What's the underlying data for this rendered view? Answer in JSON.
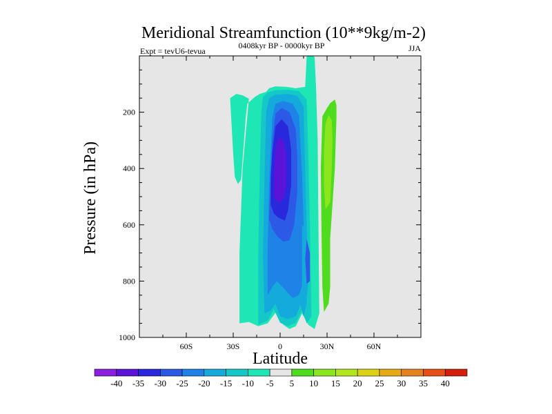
{
  "chart_data": {
    "type": "contour",
    "title": "Meridional Streamfunction (10**9kg/m-2)",
    "subtitle": "0408kyr BP - 0000kyr BP",
    "left_label": "Expt = tevU6-tevua",
    "right_label": "JJA",
    "xlabel": "Latitude",
    "ylabel": "Pressure (in hPa)",
    "x_range": [
      -90,
      90
    ],
    "y_range": [
      0,
      1000
    ],
    "y_inverted": true,
    "x_ticks": [
      {
        "value": -60,
        "label": "60S"
      },
      {
        "value": -30,
        "label": "30S"
      },
      {
        "value": 0,
        "label": "0"
      },
      {
        "value": 30,
        "label": "30N"
      },
      {
        "value": 60,
        "label": "60N"
      }
    ],
    "y_ticks": [
      {
        "value": 200,
        "label": "200"
      },
      {
        "value": 400,
        "label": "400"
      },
      {
        "value": 600,
        "label": "600"
      },
      {
        "value": 800,
        "label": "800"
      },
      {
        "value": 1000,
        "label": "1000"
      }
    ],
    "contour_levels": [
      -40,
      -35,
      -30,
      -25,
      -20,
      -15,
      -10,
      -5,
      5,
      10,
      15,
      20,
      25,
      30,
      35,
      40
    ],
    "colorbar_labels": [
      "-40",
      "-35",
      "-30",
      "-25",
      "-20",
      "-15",
      "-10",
      "-5",
      "5",
      "10",
      "15",
      "20",
      "25",
      "30",
      "35",
      "40"
    ],
    "colors": [
      "#8c1ee0",
      "#5a14d8",
      "#2a28dc",
      "#2c5ae6",
      "#1e82e6",
      "#14aadc",
      "#14c8c8",
      "#1ee6b4",
      "#e6e6e6",
      "#50dc1e",
      "#8ce61e",
      "#b4e61e",
      "#dcd214",
      "#e6aa14",
      "#e6821e",
      "#e65014",
      "#d21e0a"
    ],
    "regions": [
      {
        "name": "sh-tongue",
        "value": -7.5,
        "points": [
          [
            -26,
            950
          ],
          [
            -20,
            945
          ],
          [
            -14,
            960
          ],
          [
            -8,
            950
          ],
          [
            -2,
            905
          ],
          [
            2,
            955
          ],
          [
            6,
            970
          ],
          [
            10,
            960
          ],
          [
            14,
            915
          ],
          [
            18,
            955
          ],
          [
            22,
            970
          ],
          [
            25,
            915
          ],
          [
            24,
            400
          ],
          [
            23,
            120
          ],
          [
            22,
            5
          ],
          [
            21,
            -5
          ],
          [
            17,
            -5
          ],
          [
            16,
            110
          ],
          [
            10,
            115
          ],
          [
            4,
            110
          ],
          [
            -3,
            108
          ],
          [
            -7,
            115
          ],
          [
            -9,
            128
          ],
          [
            -13,
            135
          ],
          [
            -16,
            145
          ],
          [
            -19,
            160
          ],
          [
            -21,
            170
          ],
          [
            -22,
            220
          ],
          [
            -25,
            440
          ],
          [
            -27,
            455
          ],
          [
            -29,
            430
          ],
          [
            -30,
            350
          ],
          [
            -32,
            150
          ],
          [
            -28,
            135
          ],
          [
            -24,
            140
          ],
          [
            -20,
            152
          ],
          [
            -24,
            400
          ],
          [
            -26,
            700
          ]
        ]
      },
      {
        "name": "nh-streak",
        "value": -7.5,
        "points": [
          [
            18,
            950
          ],
          [
            22,
            970
          ],
          [
            25,
            915
          ],
          [
            24.5,
            600
          ],
          [
            24,
            300
          ],
          [
            23,
            120
          ],
          [
            22,
            5
          ],
          [
            21,
            -5
          ],
          [
            17,
            -5
          ],
          [
            17,
            150
          ],
          [
            18,
            400
          ],
          [
            19,
            700
          ]
        ]
      },
      {
        "name": "cell-10",
        "value": -12.5,
        "points": [
          [
            -14,
            955
          ],
          [
            -8,
            940
          ],
          [
            -4,
            900
          ],
          [
            0,
            948
          ],
          [
            5,
            960
          ],
          [
            10,
            948
          ],
          [
            14,
            905
          ],
          [
            17,
            950
          ],
          [
            20,
            925
          ],
          [
            19,
            600
          ],
          [
            18,
            350
          ],
          [
            17,
            155
          ],
          [
            12,
            125
          ],
          [
            5,
            120
          ],
          [
            -3,
            122
          ],
          [
            -8,
            130
          ],
          [
            -11,
            145
          ],
          [
            -12,
            200
          ],
          [
            -13,
            400
          ],
          [
            -14,
            700
          ]
        ]
      },
      {
        "name": "cell-15",
        "value": -17.5,
        "points": [
          [
            -10,
            915
          ],
          [
            -6,
            905
          ],
          [
            -3,
            880
          ],
          [
            0,
            925
          ],
          [
            5,
            935
          ],
          [
            10,
            925
          ],
          [
            13,
            885
          ],
          [
            15,
            925
          ],
          [
            17,
            880
          ],
          [
            17,
            600
          ],
          [
            16,
            400
          ],
          [
            15,
            180
          ],
          [
            11,
            142
          ],
          [
            5,
            135
          ],
          [
            -3,
            138
          ],
          [
            -7,
            150
          ],
          [
            -9,
            200
          ],
          [
            -10,
            450
          ],
          [
            -11,
            700
          ]
        ]
      },
      {
        "name": "cell-20",
        "value": -22.5,
        "points": [
          [
            -8,
            850
          ],
          [
            -5,
            820
          ],
          [
            -2,
            800
          ],
          [
            3,
            830
          ],
          [
            8,
            860
          ],
          [
            12,
            850
          ],
          [
            15,
            800
          ],
          [
            15,
            600
          ],
          [
            14,
            420
          ],
          [
            12,
            210
          ],
          [
            8,
            170
          ],
          [
            2,
            160
          ],
          [
            -3,
            170
          ],
          [
            -5,
            220
          ],
          [
            -7,
            450
          ],
          [
            -8,
            700
          ]
        ]
      },
      {
        "name": "cell-25",
        "value": -27.5,
        "points": [
          [
            -7,
            580
          ],
          [
            -5,
            615
          ],
          [
            -2,
            640
          ],
          [
            2,
            660
          ],
          [
            6,
            655
          ],
          [
            9,
            600
          ],
          [
            11,
            480
          ],
          [
            11,
            360
          ],
          [
            10,
            260
          ],
          [
            6,
            200
          ],
          [
            1,
            185
          ],
          [
            -3,
            205
          ],
          [
            -5,
            300
          ],
          [
            -6,
            420
          ]
        ]
      },
      {
        "name": "cell-30",
        "value": -32.5,
        "points": [
          [
            -6,
            530
          ],
          [
            -4,
            560
          ],
          [
            -1,
            575
          ],
          [
            3,
            585
          ],
          [
            5,
            550
          ],
          [
            7,
            460
          ],
          [
            7,
            330
          ],
          [
            5,
            250
          ],
          [
            1,
            225
          ],
          [
            -3,
            250
          ],
          [
            -5,
            340
          ],
          [
            -6,
            430
          ]
        ]
      },
      {
        "name": "cell-35",
        "value": -37.5,
        "points": [
          [
            -4,
            500
          ],
          [
            -1,
            520
          ],
          [
            2,
            510
          ],
          [
            4,
            460
          ],
          [
            4,
            350
          ],
          [
            2,
            300
          ],
          [
            -1,
            290
          ],
          [
            -3,
            330
          ],
          [
            -4,
            420
          ]
        ]
      },
      {
        "name": "streak-15",
        "value": -17.5,
        "points": [
          [
            14,
            600
          ],
          [
            17,
            620
          ],
          [
            18,
            800
          ],
          [
            17,
            860
          ],
          [
            14,
            820
          ]
        ]
      },
      {
        "name": "streak-25",
        "value": -27.5,
        "points": [
          [
            17,
            650
          ],
          [
            19,
            700
          ],
          [
            19,
            800
          ],
          [
            17,
            810
          ],
          [
            16,
            720
          ]
        ]
      },
      {
        "name": "nh-cell-10",
        "value": 7.5,
        "points": [
          [
            28,
            910
          ],
          [
            31,
            880
          ],
          [
            32,
            820
          ],
          [
            32,
            650
          ],
          [
            35,
            400
          ],
          [
            36,
            220
          ],
          [
            36,
            175
          ],
          [
            35,
            155
          ],
          [
            32,
            168
          ],
          [
            30,
            185
          ],
          [
            27,
            215
          ],
          [
            26,
            400
          ],
          [
            26.5,
            650
          ],
          [
            27,
            820
          ]
        ]
      },
      {
        "name": "nh-cell-15",
        "value": 12.5,
        "points": [
          [
            29,
            545
          ],
          [
            32,
            520
          ],
          [
            33,
            400
          ],
          [
            33.5,
            300
          ],
          [
            33,
            230
          ],
          [
            31,
            210
          ],
          [
            29,
            240
          ],
          [
            28,
            340
          ],
          [
            28,
            460
          ]
        ]
      }
    ]
  }
}
